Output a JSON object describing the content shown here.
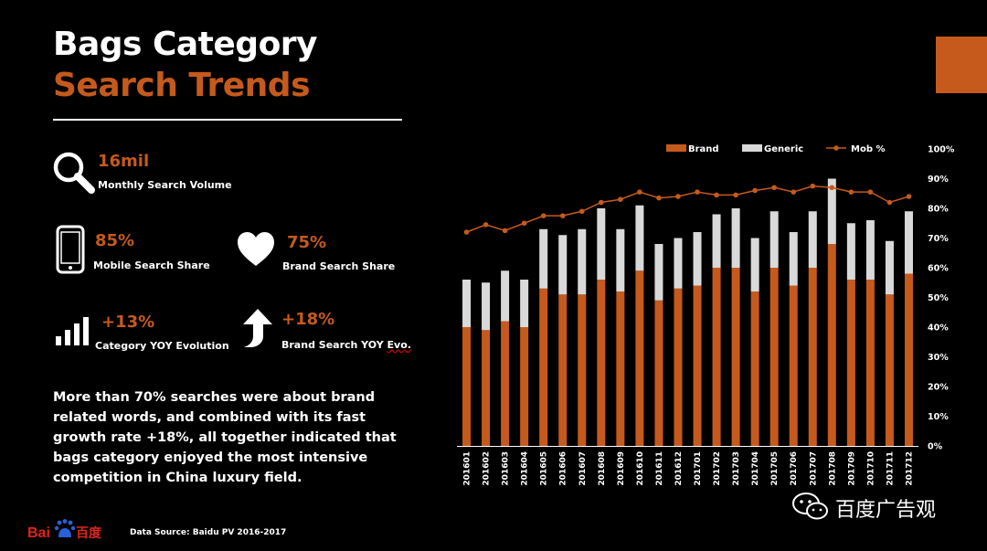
{
  "header": {
    "title_line1": "Bags Category",
    "title_line2": "Search Trends"
  },
  "stats": {
    "search_volume": {
      "value": "16mil",
      "label": "Monthly Search Volume"
    },
    "mobile_share": {
      "value": "85%",
      "label": "Mobile Search Share"
    },
    "brand_share": {
      "value": "75%",
      "label": "Brand Search Share"
    },
    "category_yoy": {
      "value": "+13%",
      "label": "Category YOY Evolution"
    },
    "brand_yoy": {
      "value": "+18%",
      "label_main": "Brand Search YOY ",
      "label_tail": "Evo."
    }
  },
  "summary": "More than 70% searches were about brand related words, and combined with its fast growth rate +18%, all together indicated that bags category enjoyed the most intensive competition in China luxury field.",
  "footer": {
    "source": "Data Source: Baidu PV 2016-2017",
    "logo_text_latin": "Bai",
    "logo_text_cn": "百度"
  },
  "watermark": {
    "text": "百度广告观"
  },
  "colors": {
    "accent": "#c55a1c",
    "generic": "#d9d9d9",
    "background": "#000000"
  },
  "chart_data": {
    "type": "bar",
    "stacked": true,
    "categories": [
      "201601",
      "201602",
      "201603",
      "201604",
      "201605",
      "201606",
      "201607",
      "201608",
      "201609",
      "201610",
      "201611",
      "201612",
      "201701",
      "201702",
      "201703",
      "201704",
      "201705",
      "201706",
      "201707",
      "201708",
      "201709",
      "201710",
      "201711",
      "201712"
    ],
    "series": [
      {
        "name": "Brand",
        "type": "bar",
        "values": [
          40,
          39,
          42,
          40,
          53,
          51,
          51,
          56,
          52,
          59,
          49,
          53,
          54,
          60,
          60,
          52,
          60,
          54,
          60,
          68,
          56,
          56,
          51,
          58
        ]
      },
      {
        "name": "Generic",
        "type": "bar",
        "values": [
          16,
          16,
          17,
          16,
          20,
          20,
          22,
          24,
          21,
          22,
          19,
          17,
          18,
          18,
          20,
          18,
          19,
          18,
          19,
          22,
          19,
          20,
          18,
          21
        ]
      },
      {
        "name": "Mob %",
        "type": "line",
        "values": [
          72,
          74.5,
          72.5,
          75,
          77.5,
          77.5,
          79,
          82,
          83,
          85.5,
          83.5,
          84,
          85.5,
          84.5,
          84.5,
          86,
          87,
          85.5,
          87.5,
          87,
          85.5,
          85.5,
          82,
          84
        ]
      }
    ],
    "y_ticks": [
      "0%",
      "10%",
      "20%",
      "30%",
      "40%",
      "50%",
      "60%",
      "70%",
      "80%",
      "90%",
      "100%"
    ],
    "ylim": [
      0,
      100
    ],
    "legend": [
      "Brand",
      "Generic",
      "Mob %"
    ],
    "legend_position": "top"
  }
}
